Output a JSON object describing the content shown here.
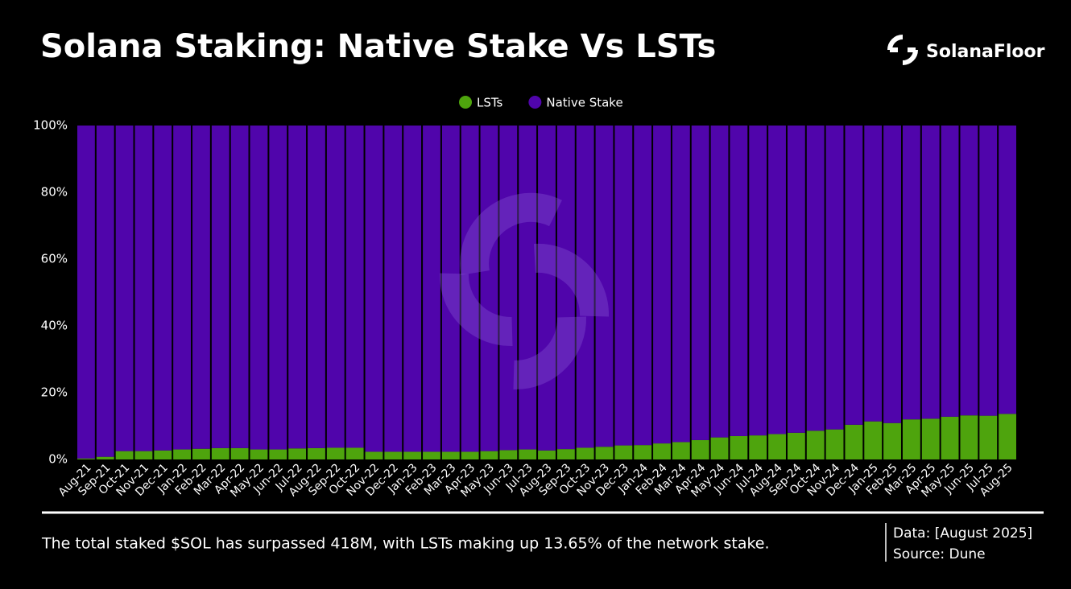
{
  "chart_data": {
    "type": "stacked_bar",
    "title": "Solana Staking: Native Stake Vs LSTs",
    "brand": "SolanaFloor",
    "caption": "The total staked $SOL has surpassed 418M, with LSTs making up 13.65% of the network stake.",
    "data_note": "Data: [August 2025]",
    "source": "Source: Dune",
    "categories": [
      "Aug-21",
      "Sep-21",
      "Oct-21",
      "Nov-21",
      "Dec-21",
      "Jan-22",
      "Feb-22",
      "Mar-22",
      "Apr-22",
      "May-22",
      "Jun-22",
      "Jul-22",
      "Aug-22",
      "Sep-22",
      "Oct-22",
      "Nov-22",
      "Dec-22",
      "Jan-23",
      "Feb-23",
      "Mar-23",
      "Apr-23",
      "May-23",
      "Jun-23",
      "Jul-23",
      "Aug-23",
      "Sep-23",
      "Oct-23",
      "Nov-23",
      "Dec-23",
      "Jan-24",
      "Feb-24",
      "Mar-24",
      "Apr-24",
      "May-24",
      "Jun-24",
      "Jul-24",
      "Aug-24",
      "Sep-24",
      "Oct-24",
      "Nov-24",
      "Dec-24",
      "Jan-25",
      "Feb-25",
      "Mar-25",
      "Apr-25",
      "May-25",
      "Jun-25",
      "Jul-25",
      "Aug-25"
    ],
    "series": [
      {
        "name": "LSTs",
        "color": "#4ea40d",
        "values": [
          0.3,
          0.8,
          2.5,
          2.5,
          2.7,
          3.0,
          3.2,
          3.4,
          3.4,
          3.0,
          3.0,
          3.3,
          3.4,
          3.5,
          3.5,
          2.3,
          2.3,
          2.3,
          2.3,
          2.3,
          2.3,
          2.5,
          2.8,
          3.0,
          2.7,
          3.1,
          3.5,
          3.8,
          4.2,
          4.3,
          4.8,
          5.2,
          5.8,
          6.6,
          7.0,
          7.2,
          7.6,
          8.0,
          8.6,
          9.0,
          10.4,
          11.4,
          10.9,
          12.0,
          12.2,
          12.8,
          13.2,
          13.1,
          13.65
        ]
      },
      {
        "name": "Native Stake",
        "color": "#5005ab",
        "values": [
          99.7,
          99.2,
          97.5,
          97.5,
          97.3,
          97.0,
          96.8,
          96.6,
          96.6,
          97.0,
          97.0,
          96.7,
          96.6,
          96.5,
          96.5,
          97.7,
          97.7,
          97.7,
          97.7,
          97.7,
          97.7,
          97.5,
          97.2,
          97.0,
          97.3,
          96.9,
          96.5,
          96.2,
          95.8,
          95.7,
          95.2,
          94.8,
          94.2,
          93.4,
          93.0,
          92.8,
          92.4,
          92.0,
          91.4,
          91.0,
          89.6,
          88.6,
          89.1,
          88.0,
          87.8,
          87.2,
          86.8,
          86.9,
          86.35
        ]
      }
    ],
    "ylim": [
      0,
      100
    ],
    "yticks": [
      {
        "value": 0,
        "label": "0%"
      },
      {
        "value": 20,
        "label": "20%"
      },
      {
        "value": 40,
        "label": "40%"
      },
      {
        "value": 60,
        "label": "60%"
      },
      {
        "value": 80,
        "label": "80%"
      },
      {
        "value": 100,
        "label": "100%"
      }
    ],
    "legend": "top"
  }
}
